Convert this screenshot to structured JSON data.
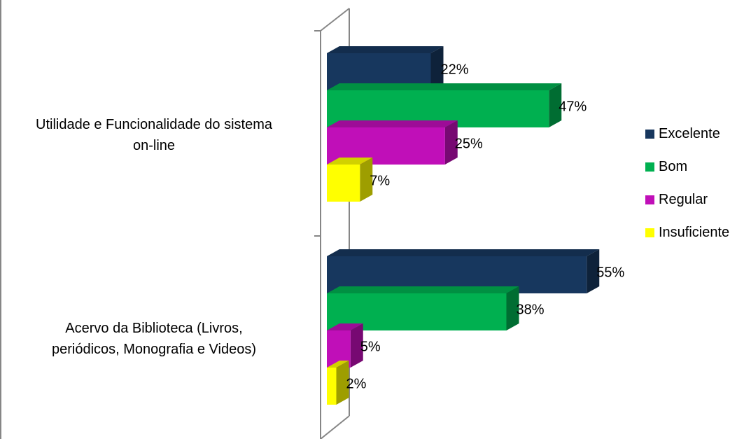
{
  "chart_data": {
    "type": "bar",
    "orientation": "horizontal",
    "style": "3d",
    "categories": [
      [
        "Utilidade e Funcionalidade do sistema",
        "on-line"
      ],
      [
        "Acervo da Biblioteca (Livros,",
        "periódicos, Monografia e Videos)"
      ]
    ],
    "series": [
      {
        "name": "Excelente",
        "color": "#17375e",
        "values": [
          22,
          55
        ],
        "labels": [
          "22%",
          "55%"
        ]
      },
      {
        "name": "Bom",
        "color": "#00b050",
        "values": [
          47,
          38
        ],
        "labels": [
          "47%",
          "38%"
        ]
      },
      {
        "name": "Regular",
        "color": "#c00fb8",
        "values": [
          25,
          5
        ],
        "labels": [
          "25%",
          "5%"
        ]
      },
      {
        "name": "Insuficiente",
        "color": "#ffff00",
        "values": [
          7,
          2
        ],
        "labels": [
          "7%",
          "2%"
        ]
      }
    ],
    "value_unit": "%",
    "legend_position": "right",
    "grid": false
  }
}
